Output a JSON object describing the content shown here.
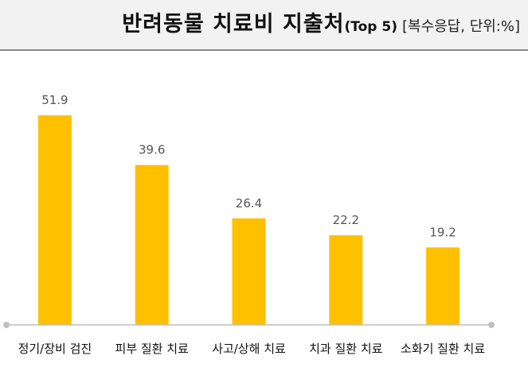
{
  "chart_data": {
    "type": "bar",
    "title": "반려동물 치료비 지출처",
    "title_tag": "(Top 5)",
    "subtitle": "[복수응답, 단위:%]",
    "categories": [
      "정기/장비 검진",
      "피부 질환 치료",
      "사고/상해 치료",
      "치과 질환 치료",
      "소화기 질환 치료"
    ],
    "values": [
      51.9,
      39.6,
      26.4,
      22.2,
      19.2
    ],
    "value_labels": [
      "51.9",
      "39.6",
      "26.4",
      "22.2",
      "19.2"
    ],
    "ylim": [
      0,
      60
    ],
    "grid": false,
    "legend": "none",
    "colors": {
      "bar": "#FFC000",
      "axis": "#bfbfbf",
      "header_bg": "#f2f2f2"
    }
  }
}
